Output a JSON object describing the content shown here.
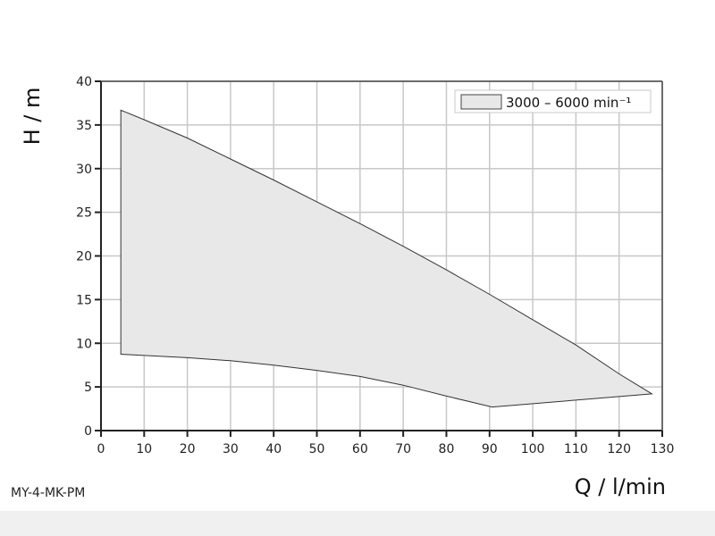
{
  "model_label": "MY-4-MK-PM",
  "chart_data": {
    "type": "area",
    "title": "",
    "xlabel": "Q / l/min",
    "ylabel": "H / m",
    "xlim": [
      0,
      130
    ],
    "ylim": [
      0,
      40
    ],
    "xticks": [
      0,
      10,
      20,
      30,
      40,
      50,
      60,
      70,
      80,
      90,
      100,
      110,
      120,
      130
    ],
    "yticks": [
      0,
      5,
      10,
      15,
      20,
      25,
      30,
      35,
      40
    ],
    "grid": true,
    "legend_position": "top-right",
    "fill_color": "#e8e8e8",
    "series": [
      {
        "name": "3000 – 6000 min⁻¹",
        "upper": {
          "x": [
            4.6,
            10,
            20,
            30,
            40,
            50,
            60,
            70,
            80,
            90,
            100,
            110,
            120,
            127.6
          ],
          "y": [
            36.7,
            35.6,
            33.5,
            31.1,
            28.7,
            26.2,
            23.7,
            21.1,
            18.4,
            15.6,
            12.7,
            9.8,
            6.5,
            4.2
          ]
        },
        "lower": {
          "x": [
            4.6,
            10,
            20,
            30,
            40,
            50,
            60,
            70,
            80,
            90.6,
            127.6
          ],
          "y": [
            8.75,
            8.6,
            8.35,
            8.0,
            7.5,
            6.9,
            6.2,
            5.2,
            3.95,
            2.7,
            4.2
          ]
        }
      }
    ]
  }
}
